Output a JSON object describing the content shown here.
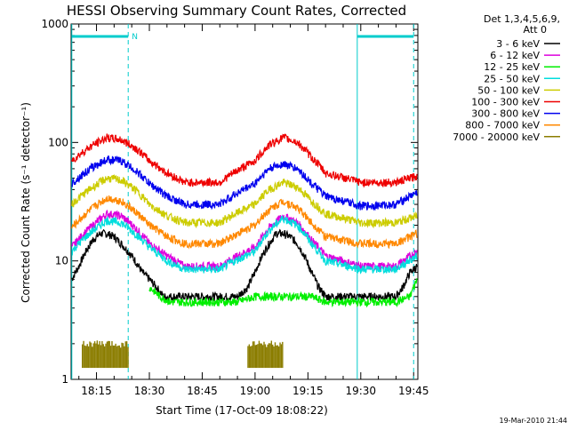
{
  "chart_data": {
    "type": "line",
    "title": "HESSI Observing Summary Count Rates, Corrected",
    "xlabel": "Start Time (17-Oct-09 18:08:22)",
    "ylabel": "Corrected Count Rate (s⁻¹ detector⁻¹)",
    "x_scale": "time",
    "x_range_minutes": [
      18.13,
      19.77
    ],
    "x_ticks": [
      "18:15",
      "18:30",
      "18:45",
      "19:00",
      "19:15",
      "19:30",
      "19:45"
    ],
    "y_scale": "log",
    "y_range": [
      1,
      1000
    ],
    "y_ticks": [
      "1",
      "10",
      "100",
      "1000"
    ],
    "legend_header": [
      "Det 1,3,4,5,6,9,",
      "Att 0"
    ],
    "series": [
      {
        "name": "3 - 6 keV",
        "color": "#000000",
        "x": [
          "18:08",
          "18:10",
          "18:12",
          "18:14",
          "18:16",
          "18:18",
          "18:20",
          "18:22",
          "18:24",
          "18:26",
          "18:28",
          "18:30",
          "18:32",
          "18:34",
          "18:36",
          "18:40",
          "18:45",
          "18:50",
          "18:55",
          "18:58",
          "19:00",
          "19:02",
          "19:04",
          "19:06",
          "19:08",
          "19:10",
          "19:12",
          "19:14",
          "19:16",
          "19:18",
          "19:20",
          "19:25",
          "19:30",
          "19:35",
          "19:40",
          "19:42",
          "19:44",
          "19:46"
        ],
        "y": [
          7,
          9,
          12,
          15,
          17,
          17,
          16,
          14,
          12,
          10,
          8,
          7,
          6,
          5,
          5,
          5,
          5,
          5,
          5,
          6,
          8,
          11,
          14,
          17,
          17,
          16,
          14,
          11,
          8,
          6,
          5,
          5,
          5,
          5,
          5,
          6,
          8,
          9
        ]
      },
      {
        "name": "6 - 12 keV",
        "color": "#dd00dd",
        "x": [
          "18:08",
          "18:14",
          "18:18",
          "18:22",
          "18:26",
          "18:30",
          "18:35",
          "18:40",
          "18:50",
          "19:00",
          "19:04",
          "19:08",
          "19:12",
          "19:16",
          "19:20",
          "19:30",
          "19:40",
          "19:46"
        ],
        "y": [
          13,
          20,
          25,
          24,
          19,
          14,
          11,
          9,
          9,
          13,
          19,
          24,
          21,
          15,
          11,
          9,
          9,
          12
        ]
      },
      {
        "name": "12 - 25 keV",
        "color": "#00ee00",
        "x": [
          "18:30",
          "18:33",
          "18:36",
          "18:40",
          "18:45",
          "18:50",
          "18:55",
          "19:00",
          "19:16",
          "19:20",
          "19:25",
          "19:30",
          "19:35",
          "19:40",
          "19:44",
          "19:46"
        ],
        "y": [
          6,
          5,
          4.5,
          4.5,
          4.5,
          4.5,
          4.5,
          5,
          5,
          4.5,
          4.5,
          4.5,
          4.5,
          4.5,
          5,
          7
        ]
      },
      {
        "name": "25 - 50 keV",
        "color": "#00dddd",
        "x": [
          "18:08",
          "18:14",
          "18:18",
          "18:22",
          "18:26",
          "18:30",
          "18:35",
          "18:40",
          "18:50",
          "19:00",
          "19:04",
          "19:08",
          "19:12",
          "19:16",
          "19:20",
          "19:30",
          "19:40",
          "19:46"
        ],
        "y": [
          12,
          18,
          22,
          21,
          17,
          13,
          10,
          8.5,
          8.5,
          12,
          18,
          23,
          20,
          14,
          10,
          8.5,
          8.5,
          11
        ]
      },
      {
        "name": "50 - 100 keV",
        "color": "#cccc00",
        "x": [
          "18:08",
          "18:14",
          "18:18",
          "18:22",
          "18:26",
          "18:30",
          "18:35",
          "18:40",
          "18:50",
          "19:00",
          "19:04",
          "19:08",
          "19:12",
          "19:16",
          "19:20",
          "19:30",
          "19:40",
          "19:46"
        ],
        "y": [
          30,
          42,
          50,
          48,
          40,
          30,
          24,
          21,
          21,
          30,
          40,
          46,
          42,
          32,
          25,
          21,
          21,
          24
        ]
      },
      {
        "name": "100 - 300 keV",
        "color": "#ee0000",
        "x": [
          "18:08",
          "18:14",
          "18:18",
          "18:22",
          "18:26",
          "18:30",
          "18:35",
          "18:40",
          "18:50",
          "19:00",
          "19:04",
          "19:08",
          "19:12",
          "19:16",
          "19:20",
          "19:30",
          "19:40",
          "19:46"
        ],
        "y": [
          70,
          95,
          110,
          105,
          90,
          70,
          55,
          46,
          46,
          70,
          95,
          110,
          100,
          75,
          55,
          46,
          46,
          52
        ]
      },
      {
        "name": "300 - 800 keV",
        "color": "#0000ee",
        "x": [
          "18:08",
          "18:14",
          "18:18",
          "18:22",
          "18:26",
          "18:30",
          "18:35",
          "18:40",
          "18:50",
          "19:00",
          "19:04",
          "19:08",
          "19:12",
          "19:16",
          "19:20",
          "19:30",
          "19:40",
          "19:46"
        ],
        "y": [
          45,
          62,
          72,
          70,
          58,
          45,
          35,
          30,
          30,
          45,
          60,
          66,
          60,
          45,
          35,
          29,
          30,
          38
        ]
      },
      {
        "name": "800 - 7000 keV",
        "color": "#ff8800",
        "x": [
          "18:08",
          "18:14",
          "18:18",
          "18:22",
          "18:26",
          "18:30",
          "18:35",
          "18:40",
          "18:50",
          "19:00",
          "19:04",
          "19:08",
          "19:12",
          "19:16",
          "19:20",
          "19:30",
          "19:40",
          "19:46"
        ],
        "y": [
          19,
          28,
          34,
          32,
          26,
          20,
          16,
          14,
          14,
          20,
          27,
          32,
          28,
          21,
          16,
          14,
          14,
          17
        ]
      },
      {
        "name": "7000 - 20000 keV",
        "color": "#8b7d00",
        "x": [
          "18:11",
          "18:14",
          "18:17",
          "18:20",
          "18:23",
          "18:24",
          "18:58",
          "19:00",
          "19:03",
          "19:06",
          "19:08"
        ],
        "y": [
          2,
          2,
          2,
          2,
          2,
          2,
          2,
          2,
          2,
          2,
          2
        ]
      }
    ],
    "markers": {
      "solid_lines_at": [
        "18:08",
        "19:29"
      ],
      "dashed_lines_at": [
        "18:24",
        "19:45"
      ],
      "bars": [
        [
          "18:08",
          "18:24"
        ],
        [
          "19:29",
          "19:45"
        ]
      ],
      "bar_label": "N"
    },
    "grid": false,
    "legend_position": "right"
  },
  "footer": {
    "timestamp": "19-Mar-2010 21:44"
  }
}
